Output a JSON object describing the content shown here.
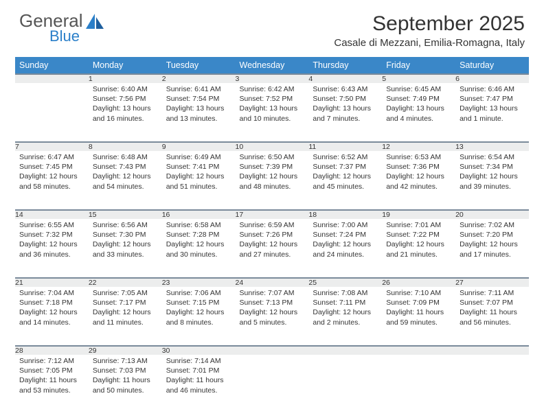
{
  "logo": {
    "word1": "General",
    "word2": "Blue"
  },
  "title": "September 2025",
  "location": "Casale di Mezzani, Emilia-Romagna, Italy",
  "colors": {
    "header_bg": "#3a87c8",
    "header_text": "#ffffff",
    "daynum_bg": "#eceded",
    "row_border": "#7a8a9a",
    "logo_blue": "#2a7fc9",
    "text": "#333333"
  },
  "day_headers": [
    "Sunday",
    "Monday",
    "Tuesday",
    "Wednesday",
    "Thursday",
    "Friday",
    "Saturday"
  ],
  "weeks": [
    [
      {
        "n": "",
        "sunrise": "",
        "sunset": "",
        "daylight": ""
      },
      {
        "n": "1",
        "sunrise": "Sunrise: 6:40 AM",
        "sunset": "Sunset: 7:56 PM",
        "daylight": "Daylight: 13 hours and 16 minutes."
      },
      {
        "n": "2",
        "sunrise": "Sunrise: 6:41 AM",
        "sunset": "Sunset: 7:54 PM",
        "daylight": "Daylight: 13 hours and 13 minutes."
      },
      {
        "n": "3",
        "sunrise": "Sunrise: 6:42 AM",
        "sunset": "Sunset: 7:52 PM",
        "daylight": "Daylight: 13 hours and 10 minutes."
      },
      {
        "n": "4",
        "sunrise": "Sunrise: 6:43 AM",
        "sunset": "Sunset: 7:50 PM",
        "daylight": "Daylight: 13 hours and 7 minutes."
      },
      {
        "n": "5",
        "sunrise": "Sunrise: 6:45 AM",
        "sunset": "Sunset: 7:49 PM",
        "daylight": "Daylight: 13 hours and 4 minutes."
      },
      {
        "n": "6",
        "sunrise": "Sunrise: 6:46 AM",
        "sunset": "Sunset: 7:47 PM",
        "daylight": "Daylight: 13 hours and 1 minute."
      }
    ],
    [
      {
        "n": "7",
        "sunrise": "Sunrise: 6:47 AM",
        "sunset": "Sunset: 7:45 PM",
        "daylight": "Daylight: 12 hours and 58 minutes."
      },
      {
        "n": "8",
        "sunrise": "Sunrise: 6:48 AM",
        "sunset": "Sunset: 7:43 PM",
        "daylight": "Daylight: 12 hours and 54 minutes."
      },
      {
        "n": "9",
        "sunrise": "Sunrise: 6:49 AM",
        "sunset": "Sunset: 7:41 PM",
        "daylight": "Daylight: 12 hours and 51 minutes."
      },
      {
        "n": "10",
        "sunrise": "Sunrise: 6:50 AM",
        "sunset": "Sunset: 7:39 PM",
        "daylight": "Daylight: 12 hours and 48 minutes."
      },
      {
        "n": "11",
        "sunrise": "Sunrise: 6:52 AM",
        "sunset": "Sunset: 7:37 PM",
        "daylight": "Daylight: 12 hours and 45 minutes."
      },
      {
        "n": "12",
        "sunrise": "Sunrise: 6:53 AM",
        "sunset": "Sunset: 7:36 PM",
        "daylight": "Daylight: 12 hours and 42 minutes."
      },
      {
        "n": "13",
        "sunrise": "Sunrise: 6:54 AM",
        "sunset": "Sunset: 7:34 PM",
        "daylight": "Daylight: 12 hours and 39 minutes."
      }
    ],
    [
      {
        "n": "14",
        "sunrise": "Sunrise: 6:55 AM",
        "sunset": "Sunset: 7:32 PM",
        "daylight": "Daylight: 12 hours and 36 minutes."
      },
      {
        "n": "15",
        "sunrise": "Sunrise: 6:56 AM",
        "sunset": "Sunset: 7:30 PM",
        "daylight": "Daylight: 12 hours and 33 minutes."
      },
      {
        "n": "16",
        "sunrise": "Sunrise: 6:58 AM",
        "sunset": "Sunset: 7:28 PM",
        "daylight": "Daylight: 12 hours and 30 minutes."
      },
      {
        "n": "17",
        "sunrise": "Sunrise: 6:59 AM",
        "sunset": "Sunset: 7:26 PM",
        "daylight": "Daylight: 12 hours and 27 minutes."
      },
      {
        "n": "18",
        "sunrise": "Sunrise: 7:00 AM",
        "sunset": "Sunset: 7:24 PM",
        "daylight": "Daylight: 12 hours and 24 minutes."
      },
      {
        "n": "19",
        "sunrise": "Sunrise: 7:01 AM",
        "sunset": "Sunset: 7:22 PM",
        "daylight": "Daylight: 12 hours and 21 minutes."
      },
      {
        "n": "20",
        "sunrise": "Sunrise: 7:02 AM",
        "sunset": "Sunset: 7:20 PM",
        "daylight": "Daylight: 12 hours and 17 minutes."
      }
    ],
    [
      {
        "n": "21",
        "sunrise": "Sunrise: 7:04 AM",
        "sunset": "Sunset: 7:18 PM",
        "daylight": "Daylight: 12 hours and 14 minutes."
      },
      {
        "n": "22",
        "sunrise": "Sunrise: 7:05 AM",
        "sunset": "Sunset: 7:17 PM",
        "daylight": "Daylight: 12 hours and 11 minutes."
      },
      {
        "n": "23",
        "sunrise": "Sunrise: 7:06 AM",
        "sunset": "Sunset: 7:15 PM",
        "daylight": "Daylight: 12 hours and 8 minutes."
      },
      {
        "n": "24",
        "sunrise": "Sunrise: 7:07 AM",
        "sunset": "Sunset: 7:13 PM",
        "daylight": "Daylight: 12 hours and 5 minutes."
      },
      {
        "n": "25",
        "sunrise": "Sunrise: 7:08 AM",
        "sunset": "Sunset: 7:11 PM",
        "daylight": "Daylight: 12 hours and 2 minutes."
      },
      {
        "n": "26",
        "sunrise": "Sunrise: 7:10 AM",
        "sunset": "Sunset: 7:09 PM",
        "daylight": "Daylight: 11 hours and 59 minutes."
      },
      {
        "n": "27",
        "sunrise": "Sunrise: 7:11 AM",
        "sunset": "Sunset: 7:07 PM",
        "daylight": "Daylight: 11 hours and 56 minutes."
      }
    ],
    [
      {
        "n": "28",
        "sunrise": "Sunrise: 7:12 AM",
        "sunset": "Sunset: 7:05 PM",
        "daylight": "Daylight: 11 hours and 53 minutes."
      },
      {
        "n": "29",
        "sunrise": "Sunrise: 7:13 AM",
        "sunset": "Sunset: 7:03 PM",
        "daylight": "Daylight: 11 hours and 50 minutes."
      },
      {
        "n": "30",
        "sunrise": "Sunrise: 7:14 AM",
        "sunset": "Sunset: 7:01 PM",
        "daylight": "Daylight: 11 hours and 46 minutes."
      },
      {
        "n": "",
        "sunrise": "",
        "sunset": "",
        "daylight": ""
      },
      {
        "n": "",
        "sunrise": "",
        "sunset": "",
        "daylight": ""
      },
      {
        "n": "",
        "sunrise": "",
        "sunset": "",
        "daylight": ""
      },
      {
        "n": "",
        "sunrise": "",
        "sunset": "",
        "daylight": ""
      }
    ]
  ]
}
